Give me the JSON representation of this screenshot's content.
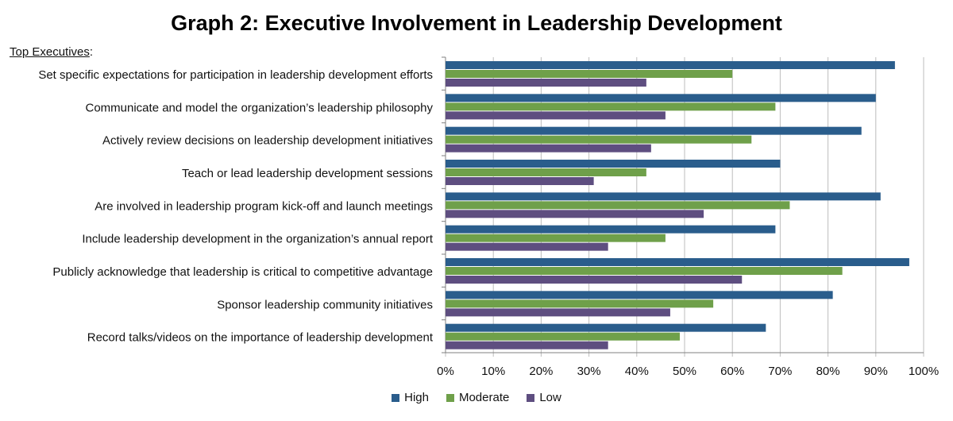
{
  "header": {
    "title": "Graph 2: Executive Involvement in Leadership Development",
    "group_label": "Top Executives",
    "group_suffix": ":"
  },
  "chart_data": {
    "type": "bar",
    "orientation": "horizontal",
    "title": "Graph 2: Executive Involvement in Leadership Development",
    "categories": [
      "Set specific expectations for participation in leadership development efforts",
      "Communicate and model the organization’s leadership philosophy",
      "Actively review decisions on leadership development initiatives",
      "Teach or lead leadership development sessions",
      "Are involved in leadership program kick-off and launch meetings",
      "Include leadership development in the organization’s annual report",
      "Publicly acknowledge that leadership is critical to competitive advantage",
      "Sponsor leadership community initiatives",
      "Record talks/videos on the importance of leadership development"
    ],
    "series": [
      {
        "name": "High",
        "color": "#2a5d8c",
        "values": [
          94,
          90,
          87,
          70,
          91,
          69,
          97,
          81,
          67
        ]
      },
      {
        "name": "Moderate",
        "color": "#6fa04a",
        "values": [
          60,
          69,
          64,
          42,
          72,
          46,
          83,
          56,
          49
        ]
      },
      {
        "name": "Low",
        "color": "#5e4e80",
        "values": [
          42,
          46,
          43,
          31,
          54,
          34,
          62,
          47,
          34
        ]
      }
    ],
    "xlim": [
      0,
      100
    ],
    "xticks": [
      "0%",
      "10%",
      "20%",
      "30%",
      "40%",
      "50%",
      "60%",
      "70%",
      "80%",
      "90%",
      "100%"
    ],
    "grid": true,
    "legend_position": "bottom"
  }
}
